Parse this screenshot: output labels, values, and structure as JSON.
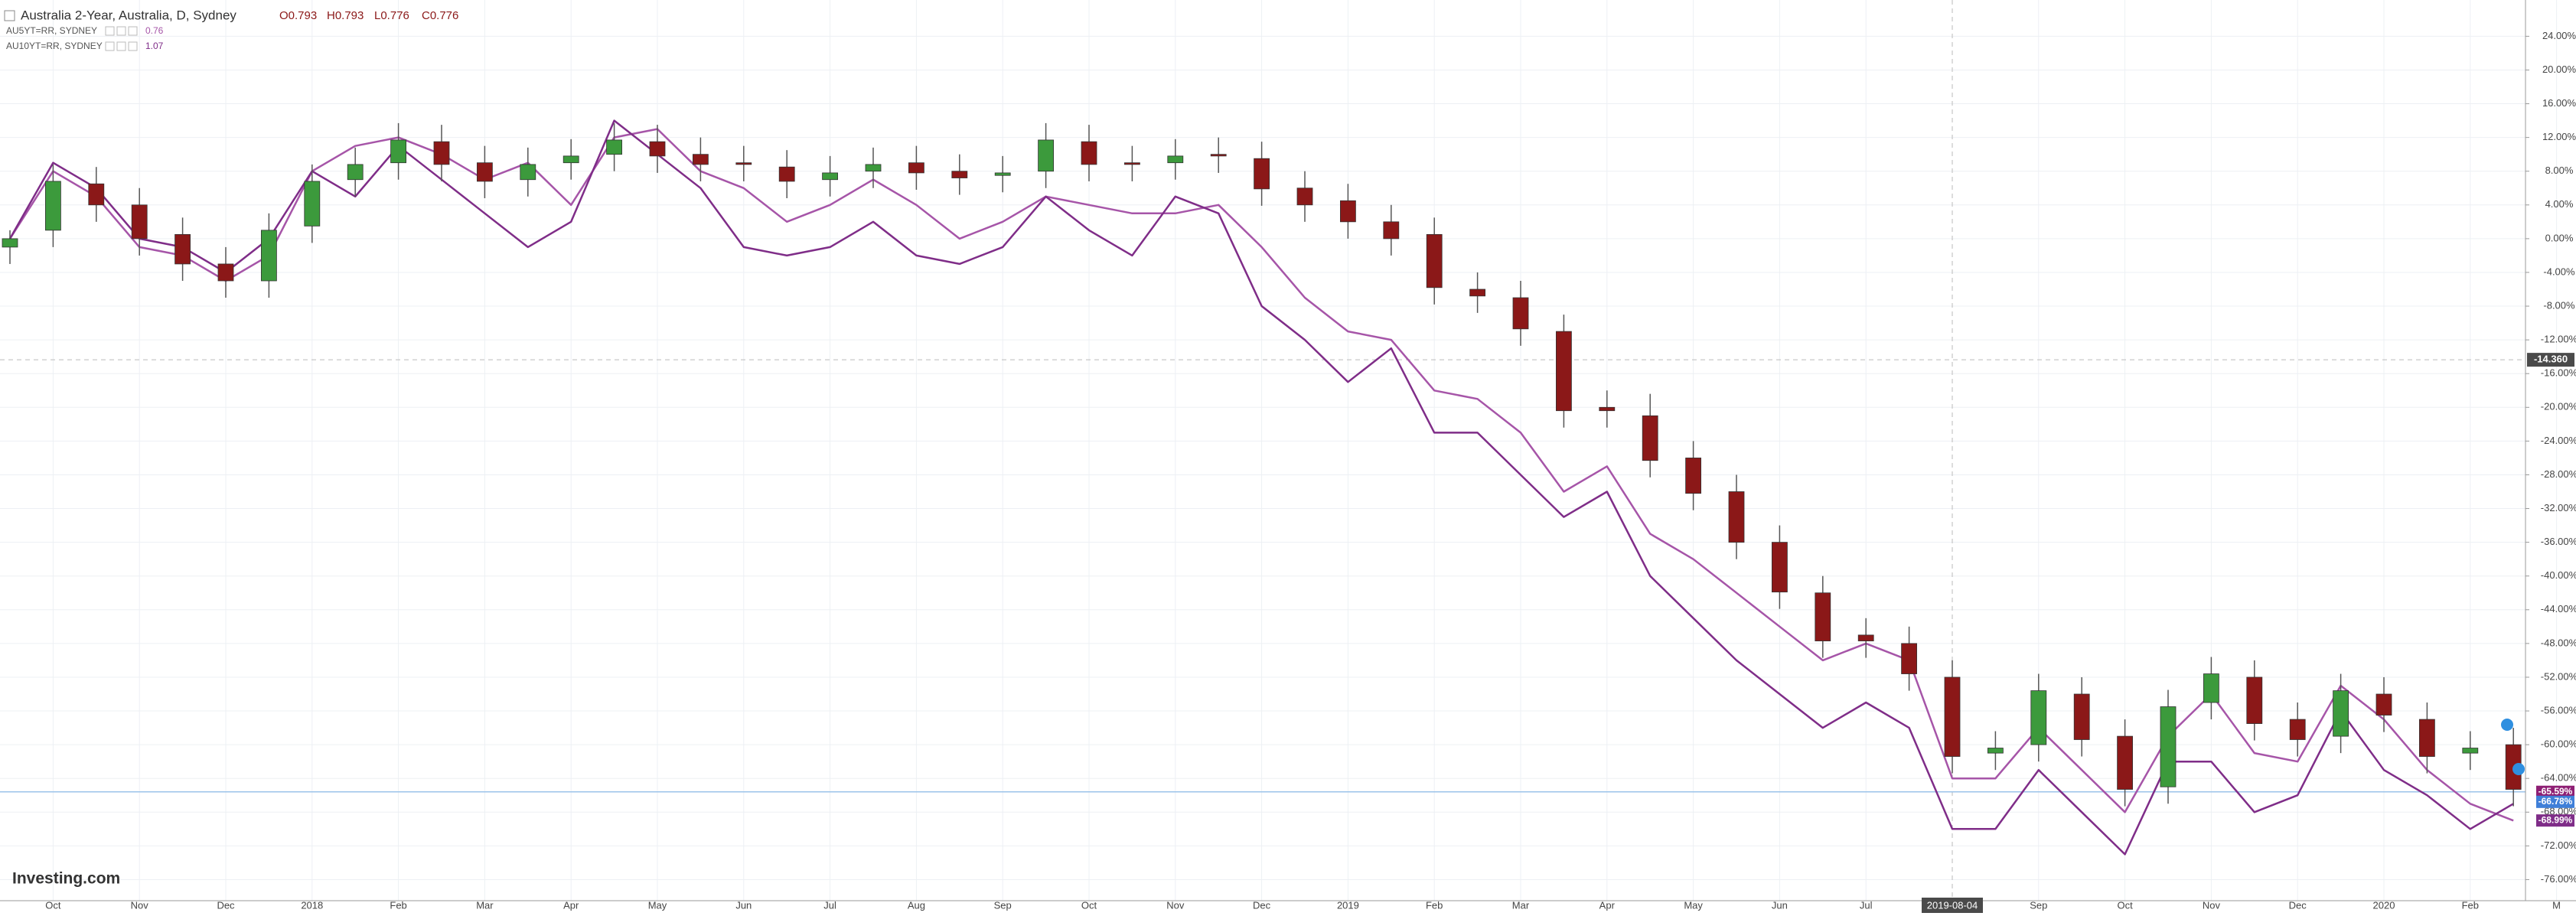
{
  "chart_data": {
    "type": "candlestick",
    "title": "Australia 2-Year, Australia, D, Sydney",
    "ohlc_readout": [
      "O0.793",
      "H0.793",
      "L0.776",
      "C0.776"
    ],
    "up_color": "#3c9a3c",
    "down_color": "#8b1818",
    "categories": [
      null,
      "Oct",
      null,
      "Nov",
      null,
      "Dec",
      null,
      "2018",
      null,
      "Feb",
      null,
      "Mar",
      null,
      "Apr",
      null,
      "May",
      null,
      "Jun",
      null,
      "Jul",
      null,
      "Aug",
      null,
      "Sep",
      null,
      "Oct",
      null,
      "Nov",
      null,
      "Dec",
      null,
      "2019",
      null,
      "Feb",
      null,
      "Mar",
      null,
      "Apr",
      null,
      "May",
      null,
      "Jun",
      null,
      "Jul",
      null,
      "2019-08-04",
      null,
      "Sep",
      null,
      "Oct",
      null,
      "Nov",
      null,
      "Dec",
      null,
      "2020",
      null,
      "Feb",
      null,
      "M"
    ],
    "highlight_category": "2019-08-04",
    "open": [
      -1,
      1,
      6.5,
      4,
      0.5,
      -3,
      -5,
      1.5,
      7,
      9,
      11.5,
      9,
      7,
      9,
      10,
      11.5,
      10,
      9,
      8.5,
      7,
      8,
      9,
      8,
      7.5,
      8,
      11.5,
      9,
      9,
      10,
      9.5,
      6,
      4.5,
      2,
      0.5,
      -6,
      -7,
      -11,
      -20,
      -21,
      -26,
      -30,
      -36,
      -42,
      -47,
      -48,
      -52,
      -61,
      -60,
      -54,
      -59,
      -65,
      -55,
      -52,
      -57,
      -59,
      -54,
      -57,
      -61,
      -60,
      null
    ],
    "high": [
      1,
      8.8,
      8.5,
      6,
      2.5,
      -1,
      3,
      8.8,
      10.8,
      13.7,
      13.5,
      11,
      10.8,
      11.8,
      13.7,
      13.5,
      12,
      11,
      10.5,
      9.8,
      10.8,
      11,
      10,
      9.8,
      13.7,
      13.5,
      11,
      11.8,
      12,
      11.5,
      8,
      6.5,
      4,
      2.5,
      -4,
      -5,
      -9,
      -18,
      -18.4,
      -24,
      -28,
      -34,
      -40,
      -45,
      -46,
      -50,
      -58.4,
      -51.6,
      -52,
      -57,
      -53.5,
      -49.6,
      -50,
      -55,
      -51.6,
      -52,
      -55,
      -58.4,
      -58,
      null
    ],
    "low": [
      -3,
      -1,
      2,
      -2,
      -5,
      -7,
      -7,
      -0.5,
      5,
      7,
      6.8,
      4.8,
      5,
      7,
      8,
      7.8,
      6.8,
      6.8,
      4.8,
      5,
      6,
      5.8,
      5.2,
      5.5,
      6,
      6.8,
      6.8,
      7,
      7.8,
      3.9,
      2,
      0,
      -2,
      -7.8,
      -8.8,
      -12.7,
      -22.4,
      -22.4,
      -28.3,
      -32.2,
      -38,
      -43.9,
      -49.7,
      -49.7,
      -53.6,
      -63.4,
      -63,
      -62,
      -61.4,
      -67.3,
      -67,
      -57,
      -59.5,
      -61.4,
      -61,
      -58.5,
      -63.4,
      -63,
      -67.3,
      null
    ],
    "close": [
      0,
      6.8,
      4,
      0,
      -3,
      -5,
      1,
      6.8,
      8.8,
      11.7,
      8.8,
      6.8,
      8.8,
      9.8,
      11.7,
      9.8,
      8.8,
      8.8,
      6.8,
      7.8,
      8.8,
      7.8,
      7.2,
      7.8,
      11.7,
      8.8,
      8.8,
      9.8,
      9.8,
      5.9,
      4,
      2,
      0,
      -5.8,
      -6.8,
      -10.7,
      -20.4,
      -20.4,
      -26.3,
      -30.2,
      -36,
      -41.9,
      -47.7,
      -47.7,
      -51.6,
      -61.4,
      -60.4,
      -53.6,
      -59.4,
      -65.3,
      -55.5,
      -51.6,
      -57.5,
      -59.4,
      -53.6,
      -56.5,
      -61.4,
      -60.4,
      -65.3,
      null
    ],
    "series": [
      {
        "name": "AU5YT=RR, SYDNEY",
        "last": 0.76,
        "color": "#a655a8",
        "values": [
          0,
          8,
          5,
          -1,
          -2,
          -5,
          -2,
          8,
          11,
          12,
          10,
          7,
          9,
          4,
          12,
          13,
          8,
          6,
          2,
          4,
          7,
          4,
          0,
          2,
          5,
          4,
          3,
          3,
          4,
          -1,
          -7,
          -11,
          -12,
          -18,
          -19,
          -23,
          -30,
          -27,
          -35,
          -38,
          -42,
          -46,
          -50,
          -48,
          -50,
          -64,
          -64,
          -58,
          -63,
          -68,
          -59,
          -54,
          -61,
          -62,
          -53,
          -57,
          -63,
          -67,
          -69,
          null
        ]
      },
      {
        "name": "AU10YT=RR, SYDNEY",
        "last": 1.07,
        "color": "#7f2d88",
        "values": [
          0,
          9,
          6,
          0,
          -1,
          -4,
          0,
          8,
          5,
          11,
          7,
          3,
          -1,
          2,
          14,
          10,
          6,
          -1,
          -2,
          -1,
          2,
          -2,
          -3,
          -1,
          5,
          1,
          -2,
          5,
          3,
          -8,
          -12,
          -17,
          -13,
          -23,
          -23,
          -28,
          -33,
          -30,
          -40,
          -45,
          -50,
          -54,
          -58,
          -55,
          -58,
          -70,
          -70,
          -63,
          -68,
          -73,
          -62,
          -62,
          -68,
          -66,
          -56,
          -63,
          -66,
          -70,
          -67,
          null
        ]
      }
    ],
    "ylim": [
      -78.5,
      28.3
    ],
    "yticks": [
      {
        "value": 24,
        "label": "24.00%"
      },
      {
        "value": 20,
        "label": "20.00%"
      },
      {
        "value": 16,
        "label": "16.00%"
      },
      {
        "value": 12,
        "label": "12.00%"
      },
      {
        "value": 8,
        "label": "8.00%"
      },
      {
        "value": 4,
        "label": "4.00%"
      },
      {
        "value": 0,
        "label": "0.00%"
      },
      {
        "value": -4,
        "label": "-4.00%"
      },
      {
        "value": -8,
        "label": "-8.00%"
      },
      {
        "value": -12,
        "label": "-12.00%"
      },
      {
        "value": -16,
        "label": "-16.00%"
      },
      {
        "value": -20,
        "label": "-20.00%"
      },
      {
        "value": -24,
        "label": "-24.00%"
      },
      {
        "value": -28,
        "label": "-28.00%"
      },
      {
        "value": -32,
        "label": "-32.00%"
      },
      {
        "value": -36,
        "label": "-36.00%"
      },
      {
        "value": -40,
        "label": "-40.00%"
      },
      {
        "value": -44,
        "label": "-44.00%"
      },
      {
        "value": -48,
        "label": "-48.00%"
      },
      {
        "value": -52,
        "label": "-52.00%"
      },
      {
        "value": -56,
        "label": "-56.00%"
      },
      {
        "value": -60,
        "label": "-60.00%"
      },
      {
        "value": -64,
        "label": "-64.00%"
      },
      {
        "value": -68,
        "label": "-68.00%"
      },
      {
        "value": -72,
        "label": "-72.00%"
      },
      {
        "value": -76,
        "label": "-76.00%"
      }
    ],
    "grid": true,
    "crosshair_y": {
      "value": -14.36,
      "label": "-14.360"
    },
    "price_labels": [
      {
        "value": -65.59,
        "label": "-65.59%",
        "color": "#8e1f74",
        "line": true
      },
      {
        "value": -66.78,
        "label": "-66.78%",
        "color": "#3f7fd8"
      },
      {
        "value": -68.99,
        "label": "-68.99%",
        "color": "#7f2d88"
      }
    ],
    "logo": "Investing.com"
  }
}
